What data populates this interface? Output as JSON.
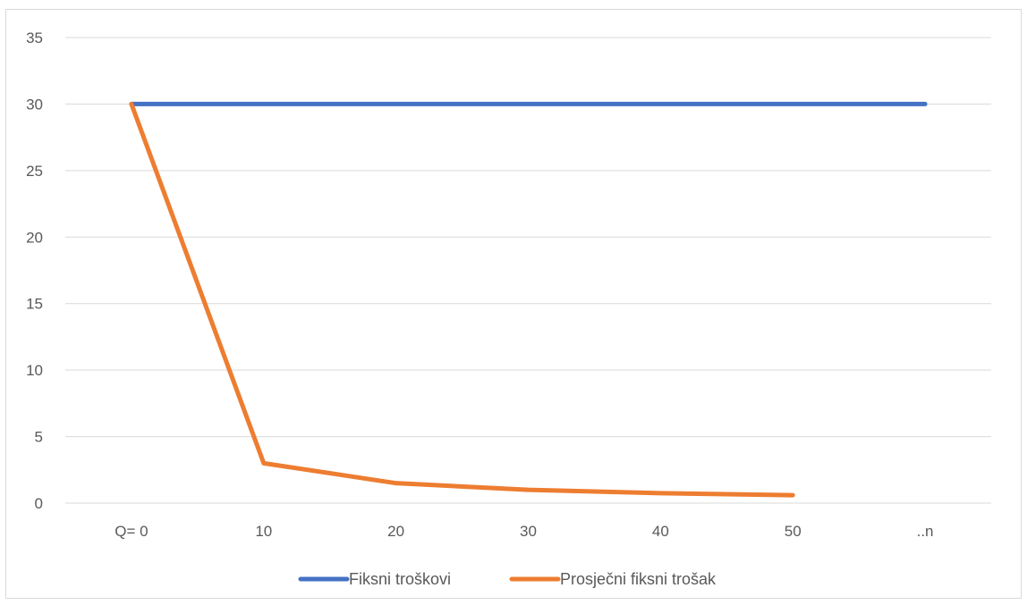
{
  "chart_data": {
    "type": "line",
    "categories": [
      "Q= 0",
      "10",
      "20",
      "30",
      "40",
      "50",
      "..n"
    ],
    "series": [
      {
        "name": "Fiksni troškovi",
        "color": "#4472C4",
        "values": [
          30,
          30,
          30,
          30,
          30,
          30,
          30
        ]
      },
      {
        "name": "Prosječni fiksni trošak",
        "color": "#ED7D31",
        "values": [
          30,
          3,
          1.5,
          1,
          0.75,
          0.6,
          null
        ]
      }
    ],
    "ylim": [
      0,
      35
    ],
    "yticks": [
      0,
      5,
      10,
      15,
      20,
      25,
      30,
      35
    ],
    "grid": true,
    "legend": "bottom"
  }
}
